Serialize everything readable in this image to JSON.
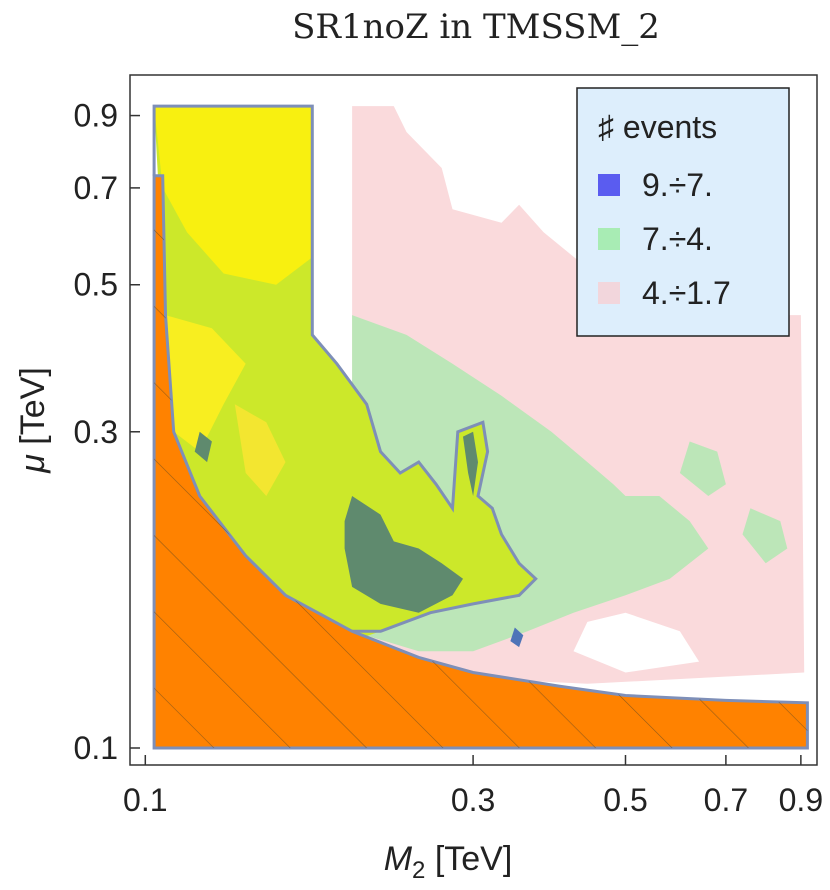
{
  "chart_data": {
    "type": "heatmap",
    "title": "SR1noZ in TMSSM_2",
    "xlabel": {
      "symbol": "M",
      "subscript": "2",
      "unit": " [TeV]"
    },
    "ylabel": {
      "symbol": "μ",
      "unit": " [TeV]"
    },
    "x_scale": "log",
    "y_scale": "log",
    "xlim": [
      0.095,
      0.95
    ],
    "ylim": [
      0.1,
      0.95
    ],
    "x_ticks": [
      {
        "value": 0.1,
        "label": "0.1"
      },
      {
        "value": 0.3,
        "label": "0.3"
      },
      {
        "value": 0.5,
        "label": "0.5"
      },
      {
        "value": 0.7,
        "label": "0.7"
      },
      {
        "value": 0.9,
        "label": "0.9"
      }
    ],
    "y_ticks": [
      {
        "value": 0.1,
        "label": "0.1"
      },
      {
        "value": 0.3,
        "label": "0.3"
      },
      {
        "value": 0.5,
        "label": "0.5"
      },
      {
        "value": 0.7,
        "label": "0.7"
      },
      {
        "value": 0.9,
        "label": "0.9"
      }
    ],
    "legend": {
      "title": "♯ events",
      "placement": "top-right",
      "entries": [
        {
          "label": "9.÷7.",
          "color": "#5a5cf0"
        },
        {
          "label": "7.÷4.",
          "color": "#a8ecb4"
        },
        {
          "label": "4.÷1.7",
          "color": "#f2d6dc"
        }
      ]
    },
    "regions": [
      {
        "name": "pink",
        "color": "#fadadc",
        "points": [
          [
            0.2,
            0.93
          ],
          [
            0.23,
            0.93
          ],
          [
            0.24,
            0.85
          ],
          [
            0.27,
            0.75
          ],
          [
            0.28,
            0.65
          ],
          [
            0.33,
            0.62
          ],
          [
            0.35,
            0.66
          ],
          [
            0.38,
            0.6
          ],
          [
            0.45,
            0.52
          ],
          [
            0.55,
            0.48
          ],
          [
            0.67,
            0.46
          ],
          [
            0.8,
            0.45
          ],
          [
            0.9,
            0.45
          ],
          [
            0.91,
            0.13
          ],
          [
            0.44,
            0.125
          ],
          [
            0.2,
            0.13
          ]
        ]
      },
      {
        "name": "green",
        "color": "#bce6b8",
        "points": [
          [
            0.2,
            0.45
          ],
          [
            0.24,
            0.42
          ],
          [
            0.28,
            0.38
          ],
          [
            0.33,
            0.34
          ],
          [
            0.39,
            0.3
          ],
          [
            0.44,
            0.27
          ],
          [
            0.48,
            0.25
          ],
          [
            0.5,
            0.24
          ],
          [
            0.56,
            0.24
          ],
          [
            0.62,
            0.22
          ],
          [
            0.66,
            0.2
          ],
          [
            0.58,
            0.18
          ],
          [
            0.5,
            0.17
          ],
          [
            0.42,
            0.16
          ],
          [
            0.36,
            0.15
          ],
          [
            0.3,
            0.14
          ],
          [
            0.25,
            0.14
          ],
          [
            0.2,
            0.15
          ]
        ]
      },
      {
        "name": "green-patch-1",
        "color": "#bce6b8",
        "points": [
          [
            0.62,
            0.29
          ],
          [
            0.68,
            0.28
          ],
          [
            0.7,
            0.25
          ],
          [
            0.66,
            0.24
          ],
          [
            0.6,
            0.26
          ]
        ]
      },
      {
        "name": "green-patch-2",
        "color": "#bce6b8",
        "points": [
          [
            0.76,
            0.23
          ],
          [
            0.84,
            0.22
          ],
          [
            0.86,
            0.2
          ],
          [
            0.8,
            0.19
          ],
          [
            0.74,
            0.21
          ]
        ]
      },
      {
        "name": "white-patch",
        "color": "#ffffff",
        "points": [
          [
            0.44,
            0.155
          ],
          [
            0.5,
            0.16
          ],
          [
            0.6,
            0.15
          ],
          [
            0.64,
            0.135
          ],
          [
            0.5,
            0.13
          ],
          [
            0.42,
            0.14
          ]
        ]
      },
      {
        "name": "yellow-green",
        "color": "#cce82a",
        "points": [
          [
            0.103,
            0.93
          ],
          [
            0.175,
            0.93
          ],
          [
            0.175,
            0.42
          ],
          [
            0.19,
            0.38
          ],
          [
            0.21,
            0.33
          ],
          [
            0.22,
            0.28
          ],
          [
            0.235,
            0.26
          ],
          [
            0.25,
            0.27
          ],
          [
            0.265,
            0.25
          ],
          [
            0.28,
            0.23
          ],
          [
            0.285,
            0.3
          ],
          [
            0.31,
            0.31
          ],
          [
            0.315,
            0.28
          ],
          [
            0.305,
            0.24
          ],
          [
            0.32,
            0.23
          ],
          [
            0.33,
            0.21
          ],
          [
            0.35,
            0.19
          ],
          [
            0.37,
            0.18
          ],
          [
            0.35,
            0.17
          ],
          [
            0.3,
            0.165
          ],
          [
            0.26,
            0.16
          ],
          [
            0.22,
            0.15
          ],
          [
            0.2,
            0.145
          ],
          [
            0.17,
            0.15
          ],
          [
            0.145,
            0.17
          ],
          [
            0.125,
            0.2
          ],
          [
            0.11,
            0.28
          ],
          [
            0.107,
            0.45
          ]
        ]
      },
      {
        "name": "yellow-top",
        "color": "#f8f010",
        "points": [
          [
            0.103,
            0.93
          ],
          [
            0.175,
            0.93
          ],
          [
            0.175,
            0.55
          ],
          [
            0.155,
            0.5
          ],
          [
            0.13,
            0.52
          ],
          [
            0.115,
            0.6
          ],
          [
            0.106,
            0.7
          ]
        ]
      },
      {
        "name": "yellow-left",
        "color": "#f8ee20",
        "points": [
          [
            0.107,
            0.45
          ],
          [
            0.125,
            0.43
          ],
          [
            0.14,
            0.38
          ],
          [
            0.13,
            0.33
          ],
          [
            0.12,
            0.28
          ],
          [
            0.11,
            0.3
          ]
        ]
      },
      {
        "name": "yellow-mid",
        "color": "#f3e630",
        "points": [
          [
            0.135,
            0.33
          ],
          [
            0.15,
            0.31
          ],
          [
            0.16,
            0.27
          ],
          [
            0.15,
            0.24
          ],
          [
            0.14,
            0.26
          ]
        ]
      },
      {
        "name": "dark-core",
        "color": "#5f8a6e",
        "points": [
          [
            0.2,
            0.24
          ],
          [
            0.22,
            0.225
          ],
          [
            0.23,
            0.205
          ],
          [
            0.25,
            0.2
          ],
          [
            0.27,
            0.19
          ],
          [
            0.29,
            0.18
          ],
          [
            0.28,
            0.17
          ],
          [
            0.25,
            0.16
          ],
          [
            0.22,
            0.165
          ],
          [
            0.2,
            0.175
          ],
          [
            0.195,
            0.2
          ],
          [
            0.195,
            0.22
          ]
        ]
      },
      {
        "name": "dark-spike",
        "color": "#5f8a6e",
        "points": [
          [
            0.29,
            0.295
          ],
          [
            0.3,
            0.3
          ],
          [
            0.305,
            0.27
          ],
          [
            0.3,
            0.24
          ],
          [
            0.295,
            0.26
          ]
        ]
      },
      {
        "name": "dark-small",
        "color": "#5f8a6e",
        "points": [
          [
            0.12,
            0.3
          ],
          [
            0.125,
            0.29
          ],
          [
            0.123,
            0.27
          ],
          [
            0.118,
            0.28
          ]
        ]
      },
      {
        "name": "blue-dot",
        "color": "#4e74b8",
        "points": [
          [
            0.345,
            0.152
          ],
          [
            0.355,
            0.148
          ],
          [
            0.35,
            0.142
          ],
          [
            0.34,
            0.145
          ]
        ]
      },
      {
        "name": "excluded",
        "color": "#ff8200",
        "hatched": true,
        "points": [
          [
            0.103,
            0.1
          ],
          [
            0.103,
            0.73
          ],
          [
            0.106,
            0.73
          ],
          [
            0.107,
            0.45
          ],
          [
            0.11,
            0.3
          ],
          [
            0.12,
            0.24
          ],
          [
            0.14,
            0.195
          ],
          [
            0.16,
            0.17
          ],
          [
            0.2,
            0.15
          ],
          [
            0.25,
            0.137
          ],
          [
            0.3,
            0.13
          ],
          [
            0.4,
            0.124
          ],
          [
            0.5,
            0.12
          ],
          [
            0.7,
            0.118
          ],
          [
            0.92,
            0.117
          ],
          [
            0.92,
            0.1
          ]
        ]
      },
      {
        "name": "outline",
        "color": "none",
        "outline": "#7e8fb8",
        "points": [
          [
            0.103,
            0.73
          ],
          [
            0.103,
            0.93
          ],
          [
            0.175,
            0.93
          ],
          [
            0.175,
            0.42
          ],
          [
            0.19,
            0.38
          ],
          [
            0.21,
            0.33
          ],
          [
            0.22,
            0.28
          ],
          [
            0.235,
            0.26
          ],
          [
            0.25,
            0.27
          ],
          [
            0.265,
            0.25
          ],
          [
            0.28,
            0.23
          ],
          [
            0.285,
            0.3
          ],
          [
            0.31,
            0.31
          ],
          [
            0.315,
            0.28
          ],
          [
            0.305,
            0.24
          ],
          [
            0.32,
            0.23
          ],
          [
            0.33,
            0.21
          ],
          [
            0.35,
            0.19
          ],
          [
            0.37,
            0.18
          ],
          [
            0.35,
            0.17
          ],
          [
            0.3,
            0.165
          ],
          [
            0.26,
            0.16
          ],
          [
            0.22,
            0.15
          ],
          [
            0.2,
            0.15
          ]
        ]
      }
    ]
  }
}
